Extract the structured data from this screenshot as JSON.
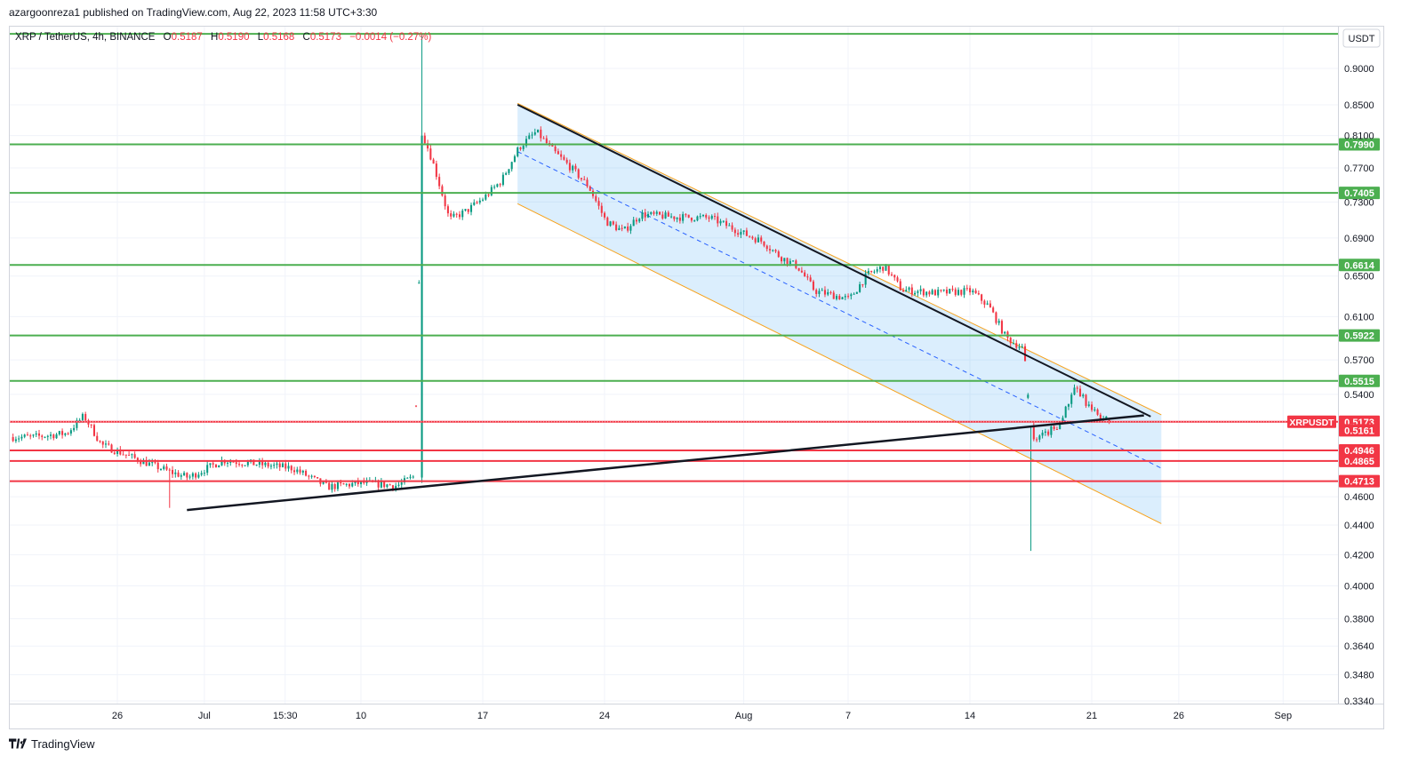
{
  "publisher_line": "azargoonreza1 published on TradingView.com, Aug 22, 2023 11:58 UTC+3:30",
  "footer": {
    "brand": "TradingView",
    "logo_icon": "tradingview-logo-icon"
  },
  "chart_data": {
    "type": "candlestick",
    "symbol_line": {
      "symbol": "XRP / TetherUS, 4h, BINANCE",
      "open_label": "O",
      "open": "0.5187",
      "high_label": "H",
      "high": "0.5190",
      "low_label": "L",
      "low": "0.5168",
      "close_label": "C",
      "close": "0.5173",
      "change": "−0.0014 (−0.27%)"
    },
    "currency_button": "USDT",
    "y_axis": {
      "scale": "log",
      "ticks": [
        "0.9000",
        "0.8500",
        "0.8100",
        "0.7700",
        "0.7300",
        "0.6900",
        "0.6500",
        "0.6100",
        "0.5700",
        "0.5400",
        "0.4600",
        "0.4400",
        "0.4200",
        "0.4000",
        "0.3800",
        "0.3640",
        "0.3480",
        "0.3340"
      ]
    },
    "x_axis": {
      "ticks": [
        "26",
        "Jul",
        "15:30",
        "10",
        "17",
        "24",
        "Aug",
        "7",
        "14",
        "21",
        "26",
        "Sep"
      ]
    },
    "horizontal_levels": {
      "green": [
        {
          "value": 0.95,
          "label": ""
        },
        {
          "value": 0.799,
          "label": "0.7990"
        },
        {
          "value": 0.7405,
          "label": "0.7405"
        },
        {
          "value": 0.6614,
          "label": "0.6614"
        },
        {
          "value": 0.5922,
          "label": "0.5922"
        },
        {
          "value": 0.5515,
          "label": "0.5515"
        }
      ],
      "red": [
        {
          "value": 0.4946,
          "label": "0.4946"
        },
        {
          "value": 0.4865,
          "label": "0.4865"
        },
        {
          "value": 0.4713,
          "label": "0.4713"
        }
      ],
      "price_line": {
        "value": 0.5173,
        "label": "0.5173",
        "tag": "XRPUSDT"
      },
      "secondary_label": {
        "value": 0.5161,
        "label": "0.5161"
      }
    },
    "channel": {
      "upper": {
        "start": [
          "2023-07-19",
          0.852
        ],
        "end": [
          "2023-08-25",
          0.523
        ]
      },
      "mid": {
        "start": [
          "2023-07-19",
          0.79
        ],
        "end": [
          "2023-08-25",
          0.481
        ]
      },
      "lower": {
        "start": [
          "2023-07-19",
          0.728
        ],
        "end": [
          "2023-08-25",
          0.441
        ]
      }
    },
    "support_trendline": {
      "start": [
        "2023-06-30",
        0.4505
      ],
      "end": [
        "2023-08-24",
        0.5225
      ]
    },
    "candles_approx": [
      [
        "2023-06-21",
        0.505
      ],
      [
        "2023-06-23",
        0.508
      ],
      [
        "2023-06-24",
        0.522
      ],
      [
        "2023-06-25",
        0.499
      ],
      [
        "2023-06-27",
        0.488
      ],
      [
        "2023-06-29",
        0.478
      ],
      [
        "2023-06-30",
        0.474
      ],
      [
        "2023-07-02",
        0.487
      ],
      [
        "2023-07-04",
        0.484
      ],
      [
        "2023-07-06",
        0.481
      ],
      [
        "2023-07-08",
        0.467
      ],
      [
        "2023-07-10",
        0.47
      ],
      [
        "2023-07-12",
        0.468
      ],
      [
        "2023-07-13",
        0.475
      ],
      [
        "2023-07-13 12:00",
        0.81
      ],
      [
        "2023-07-14",
        0.78
      ],
      [
        "2023-07-15",
        0.71
      ],
      [
        "2023-07-16",
        0.72
      ],
      [
        "2023-07-17",
        0.735
      ],
      [
        "2023-07-18",
        0.755
      ],
      [
        "2023-07-19",
        0.795
      ],
      [
        "2023-07-20",
        0.815
      ],
      [
        "2023-07-21",
        0.79
      ],
      [
        "2023-07-22",
        0.77
      ],
      [
        "2023-07-23",
        0.748
      ],
      [
        "2023-07-24",
        0.708
      ],
      [
        "2023-07-25",
        0.697
      ],
      [
        "2023-07-26",
        0.716
      ],
      [
        "2023-07-28",
        0.713
      ],
      [
        "2023-07-30",
        0.712
      ],
      [
        "2023-08-01",
        0.694
      ],
      [
        "2023-08-02",
        0.686
      ],
      [
        "2023-08-03",
        0.67
      ],
      [
        "2023-08-04",
        0.66
      ],
      [
        "2023-08-05",
        0.635
      ],
      [
        "2023-08-07",
        0.627
      ],
      [
        "2023-08-08",
        0.651
      ],
      [
        "2023-08-09",
        0.66
      ],
      [
        "2023-08-10",
        0.636
      ],
      [
        "2023-08-12",
        0.633
      ],
      [
        "2023-08-14",
        0.635
      ],
      [
        "2023-08-15",
        0.62
      ],
      [
        "2023-08-16",
        0.59
      ],
      [
        "2023-08-17",
        0.58
      ],
      [
        "2023-08-17 12:00",
        0.5
      ],
      [
        "2023-08-18",
        0.505
      ],
      [
        "2023-08-19",
        0.515
      ],
      [
        "2023-08-20",
        0.545
      ],
      [
        "2023-08-21",
        0.525
      ],
      [
        "2023-08-22",
        0.5173
      ]
    ],
    "grid": true
  }
}
